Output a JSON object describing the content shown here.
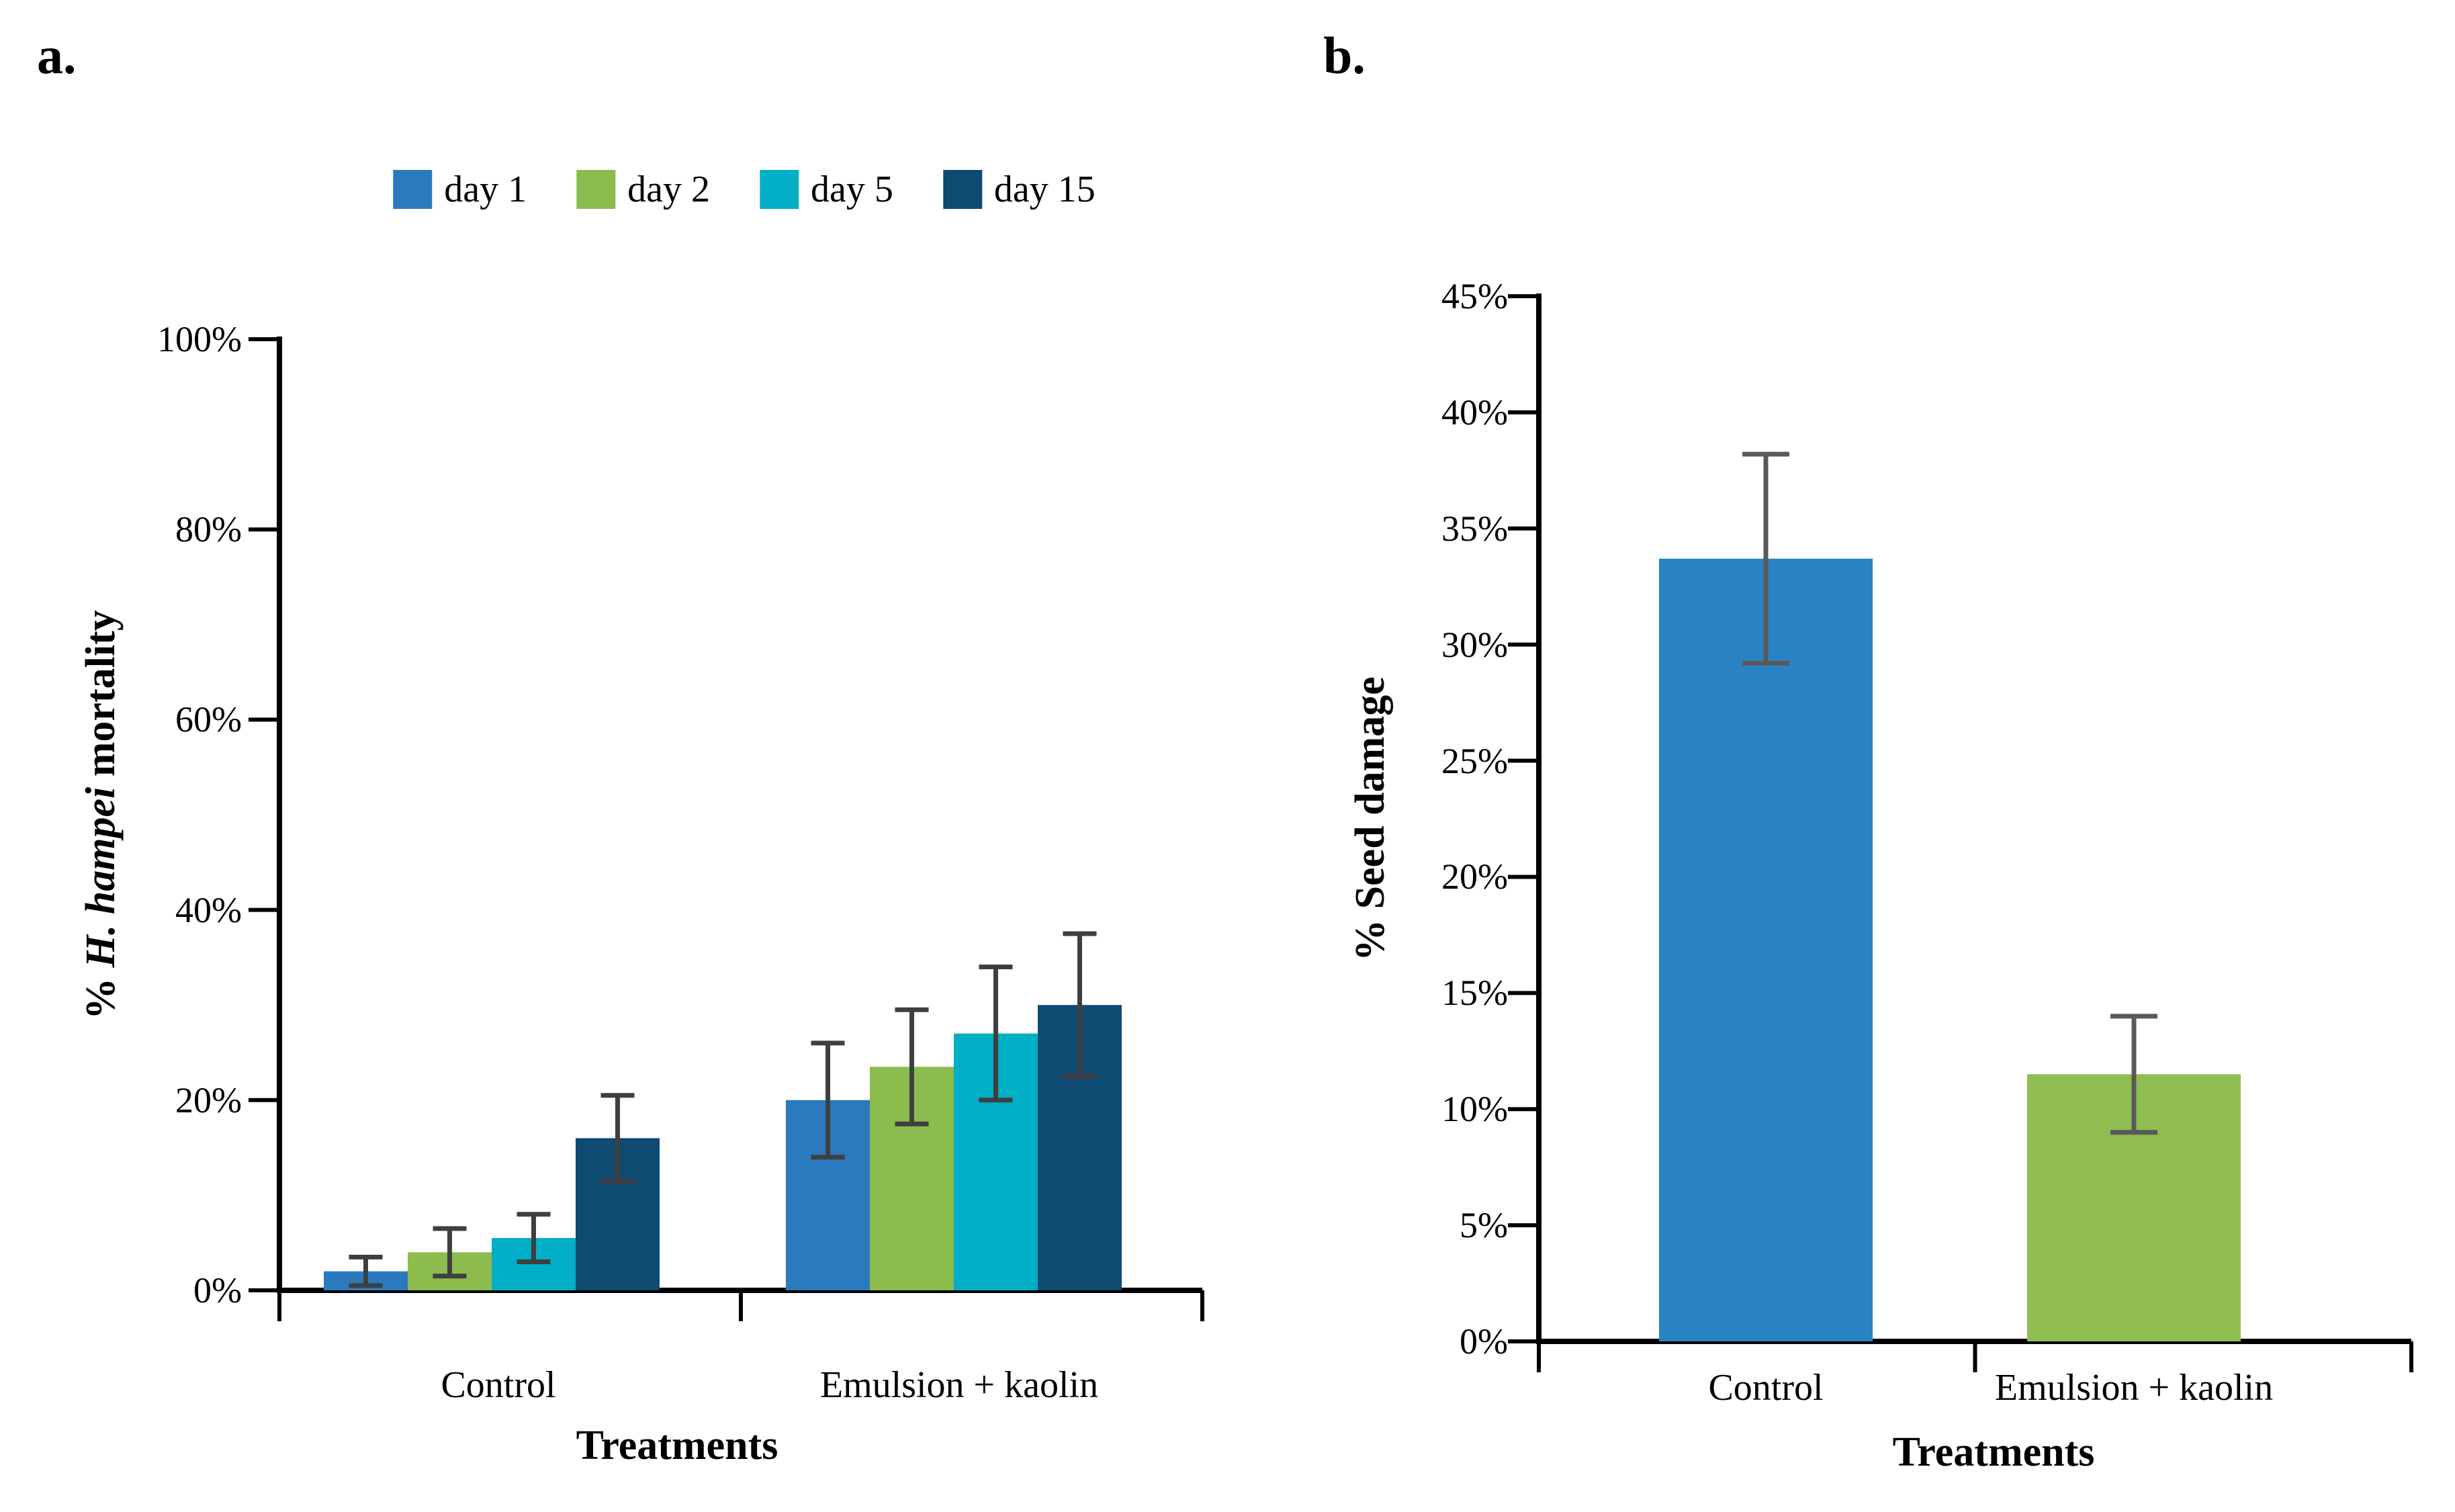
{
  "figure": {
    "panels": [
      {
        "label": "a."
      },
      {
        "label": "b."
      }
    ]
  },
  "chart_data": [
    {
      "panel": "a",
      "type": "bar",
      "title": "",
      "xlabel": "Treatments",
      "ylabel": "% H. hampei mortality",
      "ylabel_parts": [
        {
          "text": "% ",
          "italic": false
        },
        {
          "text": "H. hampei",
          "italic": true
        },
        {
          "text": " mortality",
          "italic": false
        }
      ],
      "categories": [
        "Control",
        "Emulsion + kaolin"
      ],
      "series": [
        {
          "name": "day 1",
          "color": "#2B7ABE",
          "values": [
            2.0,
            20.0
          ],
          "errors": [
            1.5,
            6.0
          ]
        },
        {
          "name": "day 2",
          "color": "#8CBB4E",
          "values": [
            4.0,
            23.5
          ],
          "errors": [
            2.5,
            6.0
          ]
        },
        {
          "name": "day 5",
          "color": "#00AEC6",
          "values": [
            5.5,
            27.0
          ],
          "errors": [
            2.5,
            7.0
          ]
        },
        {
          "name": "day 15",
          "color": "#0E4A72",
          "values": [
            16.0,
            30.0
          ],
          "errors": [
            4.5,
            7.5
          ]
        }
      ],
      "ylim": [
        0,
        100
      ],
      "ytick_step": 20,
      "ytick_labels": [
        "0%",
        "20%",
        "40%",
        "60%",
        "80%",
        "100%"
      ],
      "legend_position": "top",
      "grid": false,
      "error_bar_color": "#3F3F3F",
      "axis_color": "#000000"
    },
    {
      "panel": "b",
      "type": "bar",
      "title": "",
      "xlabel": "Treatments",
      "ylabel": "% Seed damage",
      "categories": [
        "Control",
        "Emulsion + kaolin"
      ],
      "values": [
        33.7,
        11.5
      ],
      "errors": [
        4.5,
        2.5
      ],
      "bar_colors": [
        "#2A84C4",
        "#8FBD52"
      ],
      "ylim": [
        0,
        45
      ],
      "ytick_step": 5,
      "ytick_labels": [
        "0%",
        "5%",
        "10%",
        "15%",
        "20%",
        "25%",
        "30%",
        "35%",
        "40%",
        "45%"
      ],
      "legend_position": "none",
      "grid": false,
      "error_bar_color": "#595959",
      "axis_color": "#000000"
    }
  ]
}
